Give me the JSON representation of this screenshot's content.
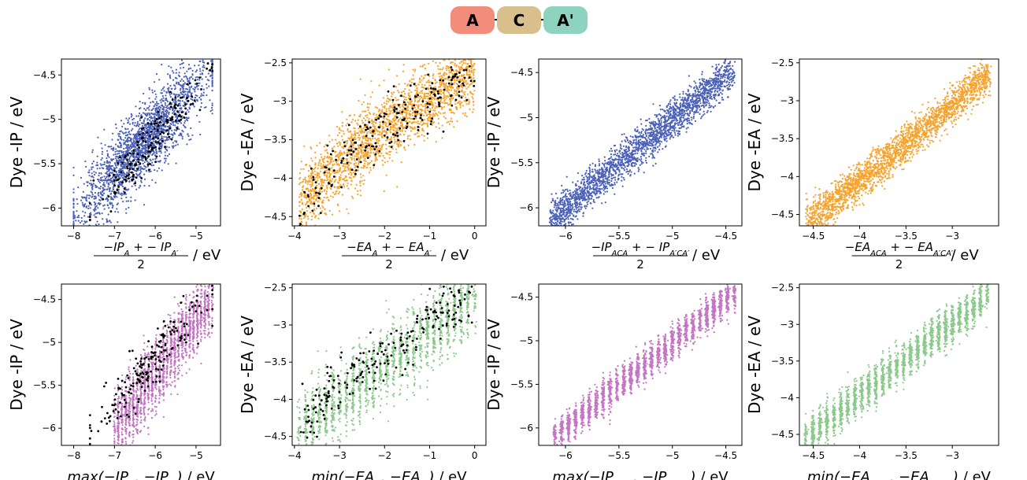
{
  "header": {
    "blocks": [
      {
        "label": "A",
        "color": "#f28d7c"
      },
      {
        "label": "C",
        "color": "#d9bf8c"
      },
      {
        "label": "A'",
        "color": "#8dd3bf"
      }
    ]
  },
  "colors": {
    "blue": "#4a60b8",
    "orange": "#f6a22b",
    "purple": "#c276c2",
    "green": "#8bc98b",
    "black": "#000000"
  },
  "chart_data": [
    {
      "type": "scatter",
      "ylabel": "Dye -IP / eV",
      "xlabel": {
        "kind": "frac",
        "parts": [
          "−IP",
          "A",
          " + − IP",
          "A′"
        ],
        "den": "2",
        "unit": " / eV"
      },
      "xlim": [
        -8.3,
        -4.4
      ],
      "ylim": [
        -6.2,
        -4.32
      ],
      "xticks": [
        -8,
        -7,
        -6,
        -5
      ],
      "yticks": [
        -6.0,
        -5.5,
        -5.0,
        -4.5
      ],
      "series": [
        {
          "color": "blue",
          "points": 2200,
          "shape": "band",
          "x": [
            -8.0,
            -4.6
          ],
          "y": [
            -6.1,
            -4.45
          ],
          "width": 0.28
        },
        {
          "color": "black",
          "points": 200,
          "shape": "band",
          "x": [
            -7.6,
            -4.6
          ],
          "y": [
            -6.05,
            -4.45
          ],
          "width": 0.2
        }
      ]
    },
    {
      "type": "scatter",
      "ylabel": "Dye -EA / eV",
      "xlabel": {
        "kind": "frac",
        "parts": [
          "−EA",
          "A",
          " + − EA",
          "A′"
        ],
        "den": "2",
        "unit": " / eV"
      },
      "xlim": [
        -4.05,
        0.25
      ],
      "ylim": [
        -4.62,
        -2.45
      ],
      "xticks": [
        -4,
        -3,
        -2,
        -1,
        0
      ],
      "yticks": [
        -4.5,
        -4.0,
        -3.5,
        -3.0,
        -2.5
      ],
      "series": [
        {
          "color": "orange",
          "points": 2200,
          "shape": "curve",
          "x": [
            -3.9,
            0.0
          ],
          "y": [
            -4.45,
            -2.6
          ],
          "width": 0.28
        },
        {
          "color": "black",
          "points": 220,
          "shape": "curve",
          "x": [
            -3.9,
            0.0
          ],
          "y": [
            -4.5,
            -2.6
          ],
          "width": 0.22
        }
      ]
    },
    {
      "type": "scatter",
      "ylabel": "Dye -IP / eV",
      "xlabel": {
        "kind": "frac",
        "parts": [
          "−IP",
          "ACA",
          " + − IP",
          "A′CA′"
        ],
        "den": "2",
        "unit": " / eV"
      },
      "xlim": [
        -6.25,
        -4.35
      ],
      "ylim": [
        -6.2,
        -4.35
      ],
      "xticks": [
        -6.0,
        -5.5,
        -5.0,
        -4.5
      ],
      "yticks": [
        -6.0,
        -5.5,
        -5.0,
        -4.5
      ],
      "series": [
        {
          "color": "blue",
          "points": 2400,
          "shape": "split",
          "x": [
            -6.15,
            -4.45
          ],
          "y": [
            -6.12,
            -4.45
          ],
          "width": 0.12
        }
      ]
    },
    {
      "type": "scatter",
      "ylabel": "Dye -EA / eV",
      "xlabel": {
        "kind": "frac",
        "parts": [
          "−EA",
          "ACA",
          " + − EA",
          "A′CA′"
        ],
        "den": "2",
        "unit": " / eV"
      },
      "xlim": [
        -4.65,
        -2.5
      ],
      "ylim": [
        -4.65,
        -2.45
      ],
      "xticks": [
        -4.5,
        -4.0,
        -3.5,
        -3.0
      ],
      "yticks": [
        -4.5,
        -4.0,
        -3.5,
        -3.0,
        -2.5
      ],
      "series": [
        {
          "color": "orange",
          "points": 2400,
          "shape": "split",
          "x": [
            -4.58,
            -2.62
          ],
          "y": [
            -4.6,
            -2.62
          ],
          "width": 0.12
        }
      ]
    },
    {
      "type": "scatter",
      "ylabel": "Dye -IP / eV",
      "xlabel": {
        "kind": "minmax",
        "fn": "max",
        "parts": [
          "−IP",
          "A",
          ", −IP",
          "A′"
        ],
        "unit": " / eV"
      },
      "xlim": [
        -8.3,
        -4.4
      ],
      "ylim": [
        -6.2,
        -4.32
      ],
      "xticks": [
        -8,
        -7,
        -6,
        -5
      ],
      "yticks": [
        -6.0,
        -5.5,
        -5.0,
        -4.5
      ],
      "series": [
        {
          "color": "purple",
          "points": 2000,
          "shape": "stripes",
          "x": [
            -7.0,
            -4.6
          ],
          "y": [
            -6.0,
            -4.5
          ],
          "width": 0.28
        },
        {
          "color": "black",
          "points": 200,
          "shape": "band",
          "x": [
            -7.6,
            -4.6
          ],
          "y": [
            -6.05,
            -4.45
          ],
          "width": 0.2
        }
      ]
    },
    {
      "type": "scatter",
      "ylabel": "Dye -EA / eV",
      "xlabel": {
        "kind": "minmax",
        "fn": "min",
        "parts": [
          "−EA",
          "A",
          ", −EA",
          "A′"
        ],
        "unit": " / eV"
      },
      "xlim": [
        -4.05,
        0.25
      ],
      "ylim": [
        -4.62,
        -2.45
      ],
      "xticks": [
        -4,
        -3,
        -2,
        -1,
        0
      ],
      "yticks": [
        -4.5,
        -4.0,
        -3.5,
        -3.0,
        -2.5
      ],
      "series": [
        {
          "color": "green",
          "points": 2000,
          "shape": "stripes",
          "x": [
            -3.9,
            0.0
          ],
          "y": [
            -4.45,
            -2.6
          ],
          "width": 0.3
        },
        {
          "color": "black",
          "points": 220,
          "shape": "curve",
          "x": [
            -3.9,
            0.0
          ],
          "y": [
            -4.5,
            -2.6
          ],
          "width": 0.22
        }
      ]
    },
    {
      "type": "scatter",
      "ylabel": "Dye -IP / eV",
      "xlabel": {
        "kind": "minmax",
        "fn": "max",
        "parts": [
          "−IP",
          "ACA",
          ", −IP",
          "A′CA′"
        ],
        "unit": " / eV"
      },
      "xlim": [
        -6.25,
        -4.35
      ],
      "ylim": [
        -6.2,
        -4.35
      ],
      "xticks": [
        -6.0,
        -5.5,
        -5.0,
        -4.5
      ],
      "yticks": [
        -6.0,
        -5.5,
        -5.0,
        -4.5
      ],
      "series": [
        {
          "color": "purple",
          "points": 2400,
          "shape": "stripes",
          "x": [
            -6.1,
            -4.42
          ],
          "y": [
            -6.1,
            -4.45
          ],
          "width": 0.12
        }
      ]
    },
    {
      "type": "scatter",
      "ylabel": "Dye -EA / eV",
      "xlabel": {
        "kind": "minmax",
        "fn": "min",
        "parts": [
          "−EA",
          "ACA",
          ", −EA",
          "A′CA′"
        ],
        "unit": " / eV"
      },
      "xlim": [
        -4.65,
        -2.5
      ],
      "ylim": [
        -4.65,
        -2.45
      ],
      "xticks": [
        -4.5,
        -4.0,
        -3.5,
        -3.0
      ],
      "yticks": [
        -4.5,
        -4.0,
        -3.5,
        -3.0,
        -2.5
      ],
      "series": [
        {
          "color": "green",
          "points": 2400,
          "shape": "stripes",
          "x": [
            -4.58,
            -2.62
          ],
          "y": [
            -4.55,
            -2.6
          ],
          "width": 0.14
        }
      ]
    }
  ]
}
